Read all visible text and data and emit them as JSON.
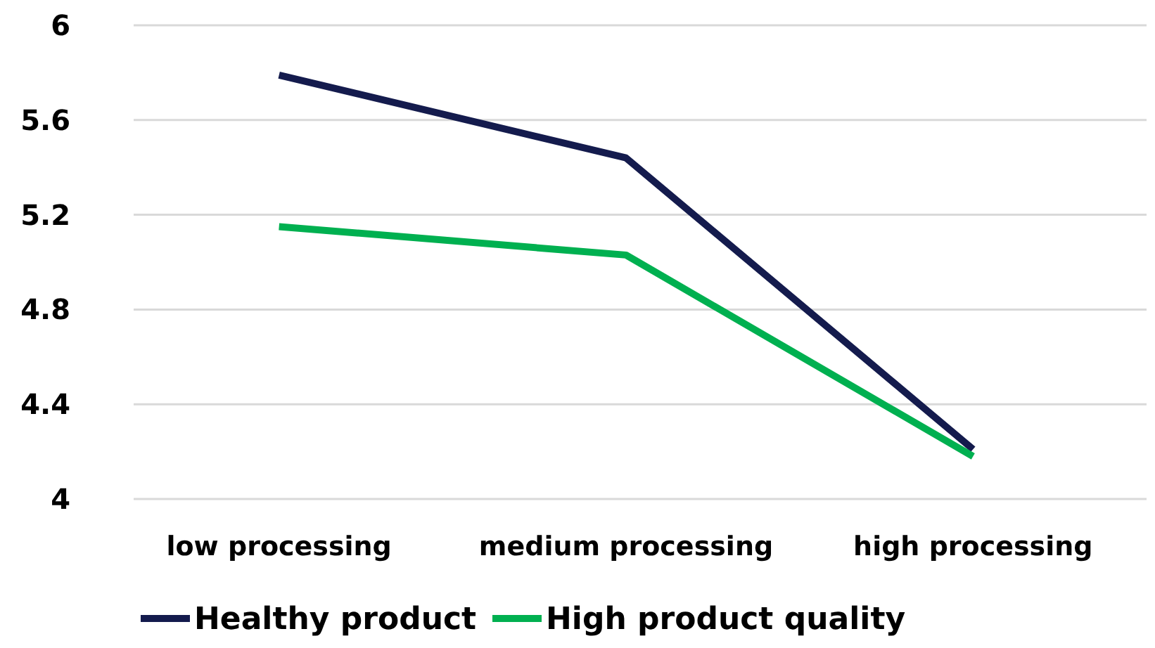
{
  "chart_data": {
    "type": "line",
    "categories": [
      "low processing",
      "medium processing",
      "high processing"
    ],
    "series": [
      {
        "name": "Healthy product",
        "color": "#141b4d",
        "values": [
          5.79,
          5.44,
          4.21
        ]
      },
      {
        "name": "High product quality",
        "color": "#00b050",
        "values": [
          5.15,
          5.03,
          4.18
        ]
      }
    ],
    "ylim": [
      4,
      6
    ],
    "yticks": [
      4,
      {
        "value": 4.4,
        "label": "4.4"
      },
      {
        "value": 4.8,
        "label": "4.8"
      },
      {
        "value": 5.2,
        "label": "5.2"
      },
      {
        "value": 5.6,
        "label": "5.6"
      },
      6
    ],
    "grid": "y",
    "legend": "bottom",
    "marker": "none",
    "line_style": "solid"
  }
}
